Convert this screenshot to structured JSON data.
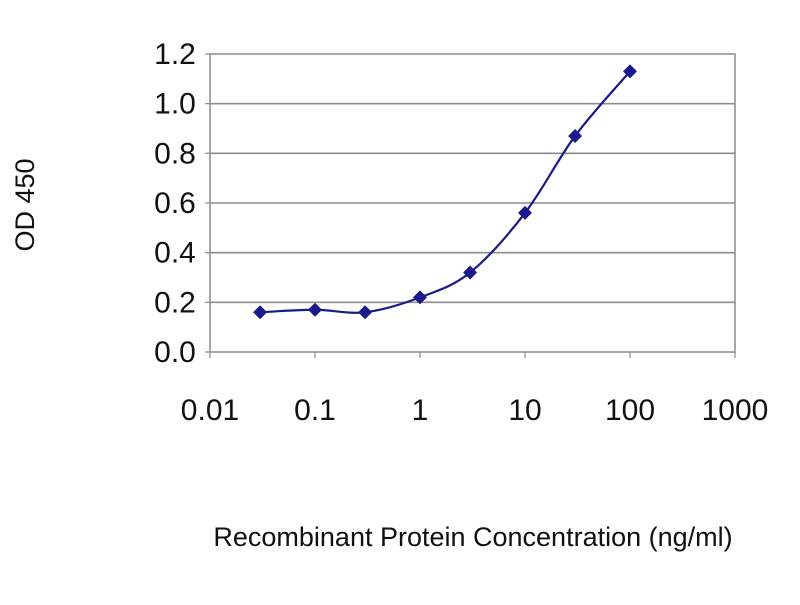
{
  "chart_data": {
    "type": "line",
    "title": "",
    "xlabel": "Recombinant Protein Concentration (ng/ml)",
    "ylabel": "OD 450",
    "x_scale": "log",
    "xlim": [
      0.01,
      1000
    ],
    "ylim": [
      0,
      1.2
    ],
    "x_ticks": [
      0.01,
      0.1,
      1,
      10,
      100,
      1000
    ],
    "x_tick_labels": [
      "0.01",
      "0.1",
      "1",
      "10",
      "100",
      "1000"
    ],
    "y_ticks": [
      0,
      0.2,
      0.4,
      0.6,
      0.8,
      1.0,
      1.2
    ],
    "y_tick_labels": [
      "0.0",
      "0.2",
      "0.4",
      "0.6",
      "0.8",
      "1.0",
      "1.2"
    ],
    "grid": "horizontal",
    "legend": "none",
    "series": [
      {
        "x": [
          0.03,
          0.1,
          0.3,
          1,
          3,
          10,
          30,
          100
        ],
        "y": [
          0.16,
          0.17,
          0.16,
          0.22,
          0.32,
          0.56,
          0.87,
          1.13
        ],
        "color": "#1a1a8c",
        "marker": "diamond"
      }
    ],
    "colors": {
      "plot_background": "#ffffff",
      "grid": "#8c8c8c",
      "frame": "#8c8c8c",
      "series": "#1a1a8c"
    }
  }
}
